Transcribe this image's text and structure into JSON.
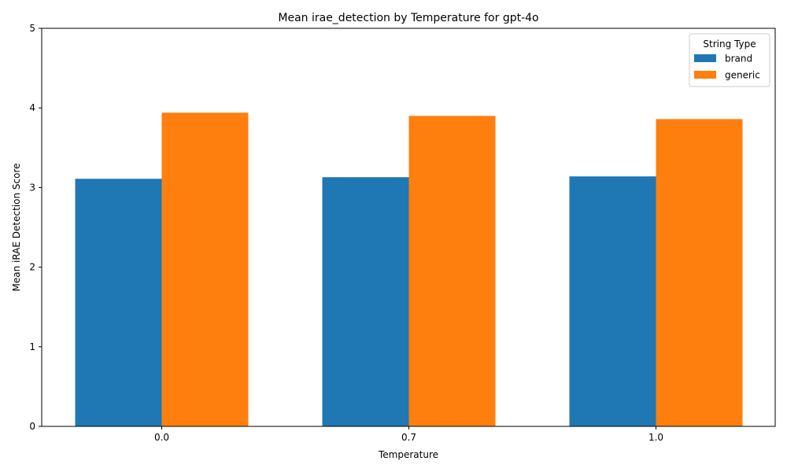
{
  "chart_data": {
    "type": "bar",
    "title": "Mean irae_detection by Temperature for gpt-4o",
    "xlabel": "Temperature",
    "ylabel": "Mean iRAE Detection Score",
    "categories": [
      "0.0",
      "0.7",
      "1.0"
    ],
    "series": [
      {
        "name": "brand",
        "values": [
          3.11,
          3.13,
          3.14
        ],
        "color": "#1f77b4"
      },
      {
        "name": "generic",
        "values": [
          3.94,
          3.9,
          3.86
        ],
        "color": "#ff7f0e"
      }
    ],
    "ylim": [
      0,
      5
    ],
    "yticks": [
      "0",
      "1",
      "2",
      "3",
      "4",
      "5"
    ],
    "grid": false,
    "legend": {
      "title": "String Type",
      "placement": "top-right"
    }
  }
}
